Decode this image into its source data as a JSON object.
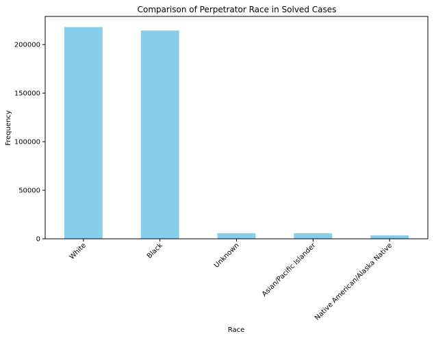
{
  "chart_data": {
    "type": "bar",
    "title": "Comparison of Perpetrator Race in Solved Cases",
    "xlabel": "Race",
    "ylabel": "Frequency",
    "categories": [
      "White",
      "Black",
      "Unknown",
      "Asian/Pacific Islander",
      "Native American/Alaska Native"
    ],
    "values": [
      218000,
      214500,
      5800,
      5700,
      3500
    ],
    "ylim": [
      0,
      229000
    ],
    "yticks": [
      0,
      50000,
      100000,
      150000,
      200000
    ],
    "ytick_labels": [
      "0",
      "50000",
      "100000",
      "150000",
      "200000"
    ],
    "x_tick_rotation_deg": 45,
    "bar_color": "#87ceeb",
    "grid": false,
    "legend": "none"
  }
}
